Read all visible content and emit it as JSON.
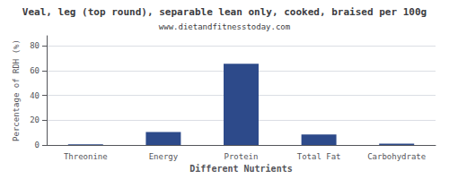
{
  "chart_data": {
    "type": "bar",
    "title": "Veal, leg (top round), separable lean only, cooked, braised per 100g",
    "subtitle": "www.dietandfitnesstoday.com",
    "xlabel": "Different Nutrients",
    "ylabel": "Percentage of RDH (%)",
    "categories": [
      "Threonine",
      "Energy",
      "Protein",
      "Total Fat",
      "Carbohydrate"
    ],
    "values": [
      0.5,
      10.5,
      65.5,
      8.5,
      1.0
    ],
    "color": "#2d4a8a",
    "ylim": [
      0,
      88
    ],
    "yticks": [
      0,
      20,
      40,
      60,
      80
    ],
    "grid": true
  }
}
